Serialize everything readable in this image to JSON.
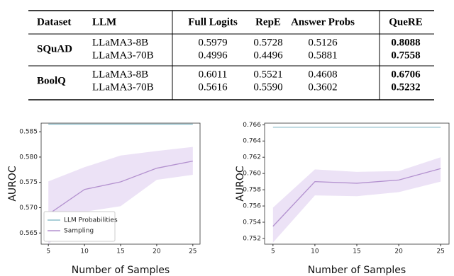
{
  "table": {
    "header": [
      "Dataset",
      "LLM",
      "Full Logits",
      "RepE",
      "Answer Probs",
      "QueRE"
    ],
    "groups": [
      {
        "dataset": "SQuAD",
        "rows": [
          [
            "LLaMA3-8B",
            "0.5979",
            "0.5728",
            "0.5126",
            "0.8088"
          ],
          [
            "LLaMA3-70B",
            "0.4996",
            "0.4496",
            "0.5881",
            "0.7558"
          ]
        ]
      },
      {
        "dataset": "BoolQ",
        "rows": [
          [
            "LLaMA3-8B",
            "0.6011",
            "0.5521",
            "0.4608",
            "0.6706"
          ],
          [
            "LLaMA3-70B",
            "0.5616",
            "0.5590",
            "0.3602",
            "0.5232"
          ]
        ]
      }
    ],
    "bold_column": 5
  },
  "chart_data": [
    {
      "type": "line",
      "xlabel": "Number of Samples",
      "ylabel": "AUROC",
      "x": [
        5,
        10,
        15,
        20,
        25
      ],
      "xlim": [
        4,
        26
      ],
      "xticks": [
        5,
        10,
        15,
        20,
        25
      ],
      "ylim": [
        0.5628,
        0.5867
      ],
      "yticks": [
        0.565,
        {
          "value": 0.57,
          "label": "0.570"
        },
        0.575,
        {
          "value": 0.58,
          "label": "0.580"
        },
        0.585
      ],
      "legend": "lower left",
      "series": [
        {
          "name": "LLM Probabilities",
          "color": "#8fbfcc",
          "values": [
            0.5865,
            0.5865,
            0.5865,
            0.5865,
            0.5865
          ]
        },
        {
          "name": "Sampling",
          "color": "#b391cf",
          "values": [
            0.5687,
            0.5736,
            0.5751,
            0.5778,
            0.5792
          ],
          "band": {
            "color": "#ece2f6",
            "lower": [
              0.5628,
              0.5692,
              0.5703,
              0.5755,
              0.5765
            ],
            "upper": [
              0.5752,
              0.578,
              0.5803,
              0.5812,
              0.582
            ]
          }
        }
      ]
    },
    {
      "type": "line",
      "xlabel": "Number of Samples",
      "ylabel": "AUROC",
      "x": [
        5,
        10,
        15,
        20,
        25
      ],
      "xlim": [
        4,
        26
      ],
      "xticks": [
        5,
        10,
        15,
        20,
        25
      ],
      "ylim": [
        0.7513,
        0.7662
      ],
      "yticks": [
        0.752,
        0.754,
        0.756,
        0.758,
        {
          "value": 0.76,
          "label": "0.760"
        },
        0.762,
        0.764,
        0.766
      ],
      "series": [
        {
          "name": "LLM Probabilities",
          "color": "#8fbfcc",
          "values": [
            0.7657,
            0.7657,
            0.7657,
            0.7657,
            0.7657
          ]
        },
        {
          "name": "Sampling",
          "color": "#b391cf",
          "values": [
            0.7535,
            0.759,
            0.7588,
            0.7592,
            0.7606
          ],
          "band": {
            "color": "#ece2f6",
            "lower": [
              0.7515,
              0.7573,
              0.7572,
              0.7577,
              0.759
            ],
            "upper": [
              0.7558,
              0.7605,
              0.7602,
              0.7603,
              0.762
            ]
          }
        }
      ]
    }
  ]
}
